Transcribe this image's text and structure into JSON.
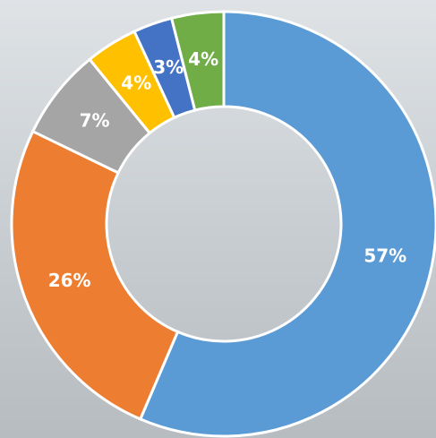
{
  "chart_data": {
    "type": "donut",
    "values": [
      57,
      26,
      7,
      4,
      3,
      4
    ],
    "value_labels": [
      "57%",
      "26%",
      "7%",
      "4%",
      "3%",
      "4%"
    ],
    "colors": [
      "#5b9bd5",
      "#ed7d31",
      "#a5a5a5",
      "#ffc000",
      "#4472c4",
      "#70ad47"
    ]
  }
}
